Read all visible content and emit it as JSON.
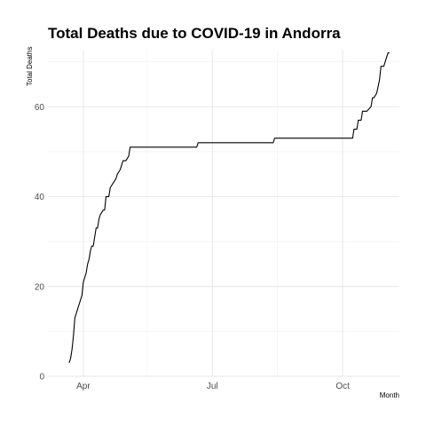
{
  "chart_data": {
    "type": "line",
    "title": "Total Deaths due to COVID-19 in Andorra",
    "xlabel": "Month",
    "ylabel": "Total Deaths",
    "grid": true,
    "xlim": [
      "2020-03-07",
      "2020-11-10"
    ],
    "ylim": [
      0,
      72.5
    ],
    "x_ticks": [
      {
        "date": "2020-04-01",
        "label": "Apr"
      },
      {
        "date": "2020-07-01",
        "label": "Jul"
      },
      {
        "date": "2020-10-01",
        "label": "Oct"
      }
    ],
    "x_minor_ticks": [
      "2020-05-16",
      "2020-08-16"
    ],
    "y_ticks": [
      0,
      20,
      40,
      60
    ],
    "y_minor_ticks": [
      10,
      30,
      50,
      70
    ],
    "series": [
      {
        "x": [
          "2020-03-22",
          "2020-03-23",
          "2020-03-24",
          "2020-03-25",
          "2020-03-26",
          "2020-03-27",
          "2020-03-28",
          "2020-03-29",
          "2020-03-30",
          "2020-03-31",
          "2020-04-01",
          "2020-04-02",
          "2020-04-03",
          "2020-04-04",
          "2020-04-05",
          "2020-04-06",
          "2020-04-07",
          "2020-04-08",
          "2020-04-09",
          "2020-04-10",
          "2020-04-11",
          "2020-04-12",
          "2020-04-13",
          "2020-04-15",
          "2020-04-16",
          "2020-04-17",
          "2020-04-19",
          "2020-04-20",
          "2020-04-22",
          "2020-04-24",
          "2020-04-25",
          "2020-04-27",
          "2020-04-28",
          "2020-04-29",
          "2020-05-01",
          "2020-05-03",
          "2020-05-04",
          "2020-05-05",
          "2020-05-07",
          "2020-05-09",
          "2020-05-12",
          "2020-05-15",
          "2020-05-17",
          "2020-06-20",
          "2020-06-21",
          "2020-08-13",
          "2020-08-14",
          "2020-10-08",
          "2020-10-09",
          "2020-10-11",
          "2020-10-12",
          "2020-10-14",
          "2020-10-15",
          "2020-10-16",
          "2020-10-18",
          "2020-10-21",
          "2020-10-22",
          "2020-10-23",
          "2020-10-25",
          "2020-10-27",
          "2020-10-28",
          "2020-10-30",
          "2020-11-01",
          "2020-11-02",
          "2020-11-03"
        ],
        "values": [
          3,
          4,
          6,
          9,
          13,
          14,
          15,
          16,
          17,
          18,
          21,
          22,
          23,
          25,
          26,
          28,
          29,
          29,
          31,
          33,
          33,
          35,
          36,
          37,
          37,
          40,
          40,
          42,
          43,
          44,
          45,
          46,
          47,
          48,
          48,
          49,
          51,
          51,
          51,
          51,
          51,
          51,
          51,
          51,
          52,
          52,
          53,
          53,
          55,
          55,
          57,
          57,
          59,
          59,
          59,
          60,
          62,
          62,
          63,
          66,
          69,
          69,
          71,
          72,
          72
        ]
      }
    ]
  }
}
